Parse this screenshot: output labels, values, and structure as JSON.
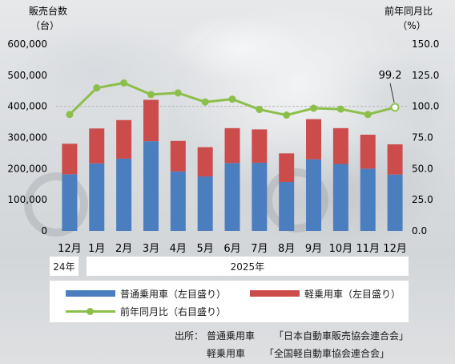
{
  "chart_data": {
    "type": "bar",
    "subtype": "stacked bar + line (dual axis)",
    "left_axis_title": "販売台数",
    "left_axis_unit": "（台）",
    "right_axis_title": "前年同月比",
    "right_axis_unit": "（%）",
    "left_ylim": [
      0,
      600000
    ],
    "right_ylim": [
      0,
      150
    ],
    "left_ticks": [
      "0",
      "100,000",
      "200,000",
      "300,000",
      "400,000",
      "500,000",
      "600,000"
    ],
    "right_ticks": [
      "0.0",
      "25.0",
      "50.0",
      "75.0",
      "100.0",
      "125.0",
      "150.0"
    ],
    "categories": [
      "12月",
      "1月",
      "2月",
      "3月",
      "4月",
      "5月",
      "6月",
      "7月",
      "8月",
      "9月",
      "10月",
      "11月",
      "12月"
    ],
    "year_labels": [
      {
        "label": "24年",
        "span": [
          0,
          0
        ]
      },
      {
        "label": "2025年",
        "span": [
          1,
          12
        ]
      }
    ],
    "series": [
      {
        "name": "普通乗用車（左目盛り）",
        "axis": "left",
        "type": "bar",
        "color": "#4a7ebf",
        "values": [
          182000,
          217000,
          232000,
          288000,
          191000,
          175000,
          218000,
          219000,
          157000,
          230000,
          215000,
          200000,
          181000
        ]
      },
      {
        "name": "軽乗用車（左目盛り）",
        "axis": "left",
        "type": "bar",
        "color": "#cc4b4b",
        "values": [
          98000,
          112000,
          124000,
          133000,
          98000,
          94000,
          112000,
          107000,
          92000,
          129000,
          115000,
          109000,
          97000
        ]
      },
      {
        "name": "前年同月比（右目盛り）",
        "axis": "right",
        "type": "line",
        "color": "#8cbf4a",
        "values": [
          93.5,
          114.8,
          118.8,
          109.5,
          110.8,
          103.5,
          105.8,
          97.5,
          93.0,
          98.5,
          97.8,
          93.5,
          99.2
        ]
      }
    ],
    "reference_line": {
      "axis": "right",
      "value": 100,
      "style": "dashed"
    },
    "annotation": {
      "text": "99.2",
      "index": 12
    },
    "legend_position": "bottom"
  },
  "source": {
    "label": "出所：",
    "rows": [
      {
        "category": "普通乗用車",
        "org": "「日本自動車販売協会連合会」"
      },
      {
        "category": "軽乗用車",
        "org": "「全国軽自動車協会連合会」"
      }
    ]
  }
}
